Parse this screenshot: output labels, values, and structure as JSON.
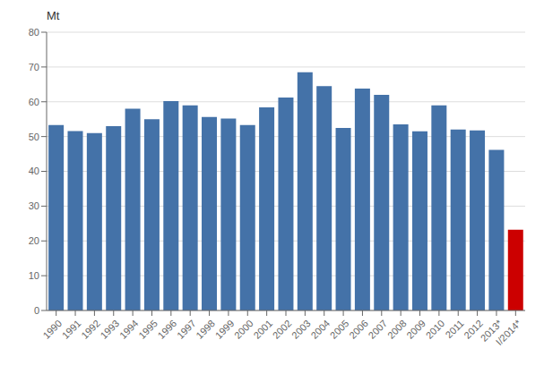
{
  "chart_data": {
    "type": "bar",
    "ylabel": "Mt",
    "categories": [
      "1990",
      "1991",
      "1992",
      "1993",
      "1994",
      "1995",
      "1996",
      "1997",
      "1998",
      "1999",
      "2000",
      "2001",
      "2002",
      "2003",
      "2004",
      "2005",
      "2006",
      "2007",
      "2008",
      "2009",
      "2010",
      "2011",
      "2012",
      "2013*",
      "I/2014*"
    ],
    "values": [
      53.3,
      51.6,
      51.0,
      53.0,
      58.0,
      55.0,
      60.2,
      59.0,
      55.6,
      55.2,
      53.3,
      58.4,
      61.2,
      68.5,
      64.5,
      52.5,
      63.8,
      62.0,
      53.5,
      51.5,
      59.0,
      52.0,
      51.8,
      46.2,
      23.2
    ],
    "colors": [
      "#4472a8",
      "#4472a8",
      "#4472a8",
      "#4472a8",
      "#4472a8",
      "#4472a8",
      "#4472a8",
      "#4472a8",
      "#4472a8",
      "#4472a8",
      "#4472a8",
      "#4472a8",
      "#4472a8",
      "#4472a8",
      "#4472a8",
      "#4472a8",
      "#4472a8",
      "#4472a8",
      "#4472a8",
      "#4472a8",
      "#4472a8",
      "#4472a8",
      "#4472a8",
      "#4472a8",
      "#cc0000"
    ],
    "ylim": [
      0,
      80
    ],
    "yticks": [
      0,
      10,
      20,
      30,
      40,
      50,
      60,
      70,
      80
    ],
    "grid": true
  }
}
